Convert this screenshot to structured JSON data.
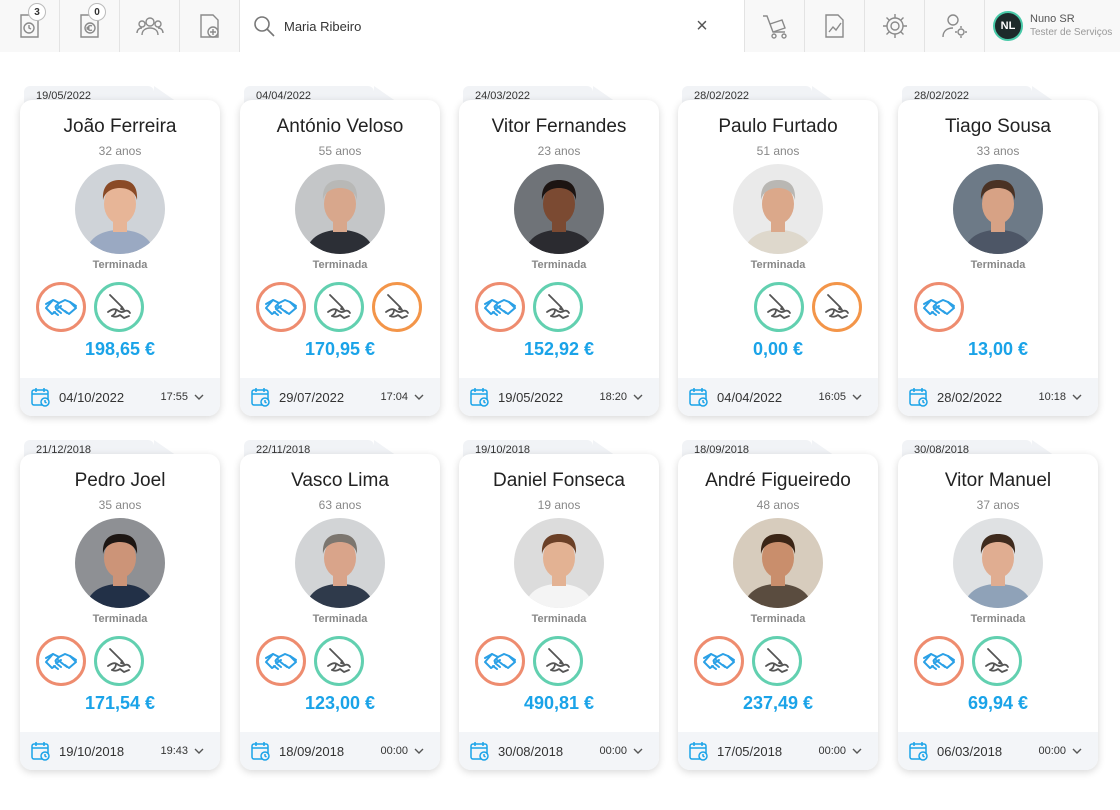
{
  "topbar": {
    "badge_1": "3",
    "badge_2": "0",
    "search_value": "Maria Ribeiro",
    "clear_symbol": "×",
    "user_initials": "NL",
    "user_name": "Nuno SR",
    "user_role": "Tester de Serviços"
  },
  "colors": {
    "accent": "#1aa3e8",
    "handshake_ring": "#ee8c6f",
    "sign_ring": "#62d0b0",
    "sign_ring_alt": "#f39549"
  },
  "cards": [
    {
      "tab_date": "19/05/2022",
      "name": "João Ferreira",
      "age": "32 anos",
      "status": "Terminada",
      "price": "198,65 €",
      "date": "04/10/2022",
      "time": "17:55",
      "icons": [
        "handshake",
        "sign"
      ],
      "photo_bg": "#cfd3d8",
      "skin": "#e7b597",
      "hair": "#8a4a26",
      "shirt": "#9aa9c2"
    },
    {
      "tab_date": "04/04/2022",
      "name": "António Veloso",
      "age": "55 anos",
      "status": "Terminada",
      "price": "170,95 €",
      "date": "29/07/2022",
      "time": "17:04",
      "icons": [
        "handshake",
        "sign",
        "sign-alt"
      ],
      "photo_bg": "#c4c6c8",
      "skin": "#d8a78c",
      "hair": "#b8b8b6",
      "shirt": "#2c2f36"
    },
    {
      "tab_date": "24/03/2022",
      "name": "Vitor Fernandes",
      "age": "23 anos",
      "status": "Terminada",
      "price": "152,92 €",
      "date": "19/05/2022",
      "time": "18:20",
      "icons": [
        "handshake",
        "sign"
      ],
      "photo_bg": "#6f7378",
      "skin": "#7b4a32",
      "hair": "#1c1412",
      "shirt": "#2b2b30"
    },
    {
      "tab_date": "28/02/2022",
      "name": "Paulo Furtado",
      "age": "51 anos",
      "status": "Terminada",
      "price": "0,00 €",
      "date": "04/04/2022",
      "time": "16:05",
      "icons": [
        "sign",
        "sign-alt"
      ],
      "photo_bg": "#eaeaea",
      "skin": "#dba88a",
      "hair": "#b9b7b3",
      "shirt": "#ded8cc"
    },
    {
      "tab_date": "28/02/2022",
      "name": "Tiago Sousa",
      "age": "33 anos",
      "status": "Terminada",
      "price": "13,00 €",
      "date": "28/02/2022",
      "time": "10:18",
      "icons": [
        "handshake"
      ],
      "photo_bg": "#6d7a87",
      "skin": "#d7a285",
      "hair": "#4a3224",
      "shirt": "#4d5666"
    },
    {
      "tab_date": "21/12/2018",
      "name": "Pedro Joel",
      "age": "35 anos",
      "status": "Terminada",
      "price": "171,54 €",
      "date": "19/10/2018",
      "time": "19:43",
      "icons": [
        "handshake",
        "sign"
      ],
      "photo_bg": "#8e9094",
      "skin": "#cc9478",
      "hair": "#1d1613",
      "shirt": "#223047"
    },
    {
      "tab_date": "22/11/2018",
      "name": "Vasco Lima",
      "age": "63 anos",
      "status": "Terminada",
      "price": "123,00 €",
      "date": "18/09/2018",
      "time": "00:00",
      "icons": [
        "handshake",
        "sign"
      ],
      "photo_bg": "#d2d4d6",
      "skin": "#d9a48a",
      "hair": "#7c766f",
      "shirt": "#2f3a4b"
    },
    {
      "tab_date": "19/10/2018",
      "name": "Daniel Fonseca",
      "age": "19 anos",
      "status": "Terminada",
      "price": "490,81 €",
      "date": "30/08/2018",
      "time": "00:00",
      "icons": [
        "handshake",
        "sign"
      ],
      "photo_bg": "#dcdcdc",
      "skin": "#e3b293",
      "hair": "#6b4027",
      "shirt": "#f4f4f4"
    },
    {
      "tab_date": "18/09/2018",
      "name": "André Figueiredo",
      "age": "48 anos",
      "status": "Terminada",
      "price": "237,49 €",
      "date": "17/05/2018",
      "time": "00:00",
      "icons": [
        "handshake",
        "sign"
      ],
      "photo_bg": "#d7ccbd",
      "skin": "#c98e6c",
      "hair": "#3b2516",
      "shirt": "#5a4c3f"
    },
    {
      "tab_date": "30/08/2018",
      "name": "Vitor Manuel",
      "age": "37 anos",
      "status": "Terminada",
      "price": "69,94 €",
      "date": "06/03/2018",
      "time": "00:00",
      "icons": [
        "handshake",
        "sign"
      ],
      "photo_bg": "#dfe1e3",
      "skin": "#e0ad91",
      "hair": "#3f2b1e",
      "shirt": "#8fa2b8"
    }
  ]
}
